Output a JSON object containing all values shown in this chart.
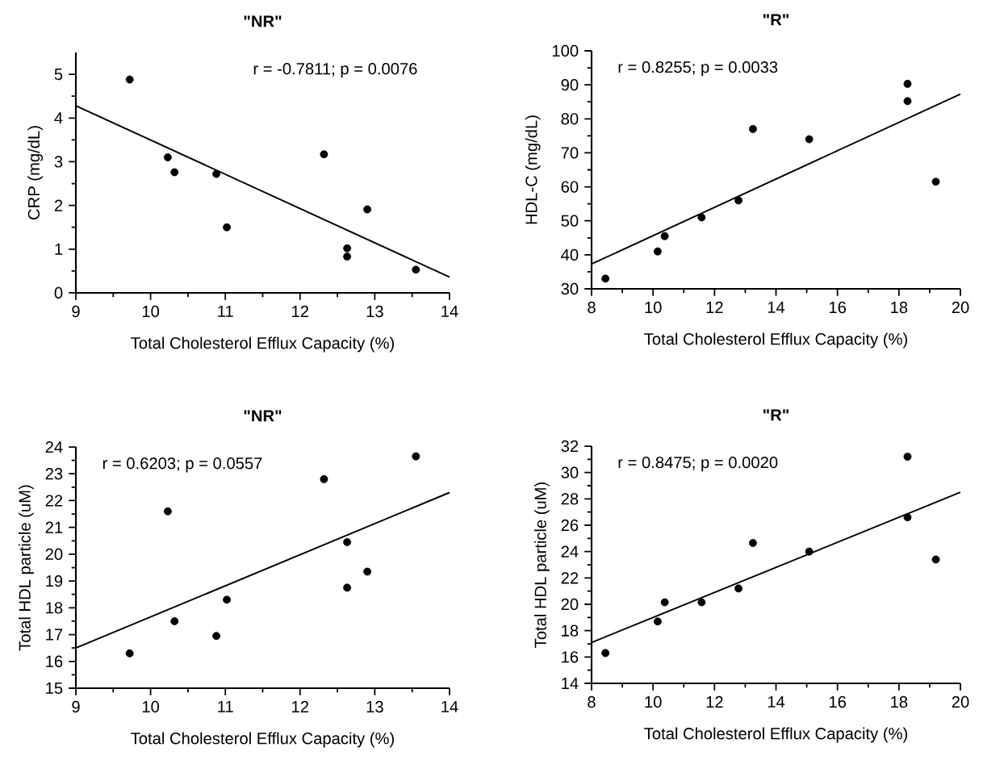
{
  "chart_data": [
    {
      "type": "scatter",
      "title": "\"NR\"",
      "xlabel": "Total Cholesterol Efflux Capacity (%)",
      "ylabel": "CRP (mg/dL)",
      "xlim": [
        9,
        14
      ],
      "ylim": [
        0,
        5.5
      ],
      "xticks": [
        9,
        10,
        11,
        12,
        13,
        14
      ],
      "yticks": [
        0,
        1,
        2,
        3,
        4,
        5
      ],
      "annotations": [
        "r = -0.7811; p = 0.0076"
      ],
      "series": [
        {
          "marker": "circle",
          "color": "#000000",
          "x": [
            9.72,
            10.23,
            10.32,
            10.88,
            11.02,
            12.32,
            12.63,
            12.63,
            12.9,
            13.55
          ],
          "values": [
            4.88,
            3.1,
            2.76,
            2.72,
            1.5,
            3.17,
            1.02,
            0.83,
            1.91,
            0.53
          ]
        },
        {
          "type": "line",
          "marker": "none",
          "color": "#000000",
          "x": [
            9,
            14
          ],
          "values": [
            4.28,
            0.36
          ]
        }
      ]
    },
    {
      "type": "scatter",
      "title": "\"R\"",
      "xlabel": "Total Cholesterol Efflux Capacity (%)",
      "ylabel": "HDL-C (mg/dL)",
      "xlim": [
        8,
        20
      ],
      "ylim": [
        30,
        100
      ],
      "xticks": [
        8,
        10,
        12,
        14,
        16,
        18,
        20
      ],
      "yticks": [
        30,
        40,
        50,
        60,
        70,
        80,
        90,
        100
      ],
      "annotations": [
        "r = 0.8255; p = 0.0033"
      ],
      "series": [
        {
          "marker": "circle",
          "color": "#000000",
          "x": [
            8.45,
            10.15,
            10.38,
            11.58,
            12.78,
            13.25,
            15.08,
            18.28,
            18.28,
            19.2
          ],
          "values": [
            33,
            41,
            45.5,
            51,
            56,
            77,
            74,
            90.3,
            85.2,
            61.5
          ]
        },
        {
          "type": "line",
          "marker": "none",
          "color": "#000000",
          "x": [
            8,
            20
          ],
          "values": [
            37.3,
            87.3
          ]
        }
      ]
    },
    {
      "type": "scatter",
      "title": "\"NR\"",
      "xlabel": "Total Cholesterol Efflux Capacity (%)",
      "ylabel": "Total HDL particle (uM)",
      "xlim": [
        9,
        14
      ],
      "ylim": [
        15,
        24
      ],
      "xticks": [
        9,
        10,
        11,
        12,
        13,
        14
      ],
      "yticks": [
        15,
        16,
        17,
        18,
        19,
        20,
        21,
        22,
        23,
        24
      ],
      "annotations": [
        "r = 0.6203; p = 0.0557"
      ],
      "series": [
        {
          "marker": "circle",
          "color": "#000000",
          "x": [
            9.72,
            10.23,
            10.32,
            10.88,
            11.02,
            12.32,
            12.63,
            12.63,
            12.9,
            13.55
          ],
          "values": [
            16.3,
            21.6,
            17.5,
            16.95,
            18.3,
            22.8,
            20.45,
            18.75,
            19.35,
            23.65
          ]
        },
        {
          "type": "line",
          "marker": "none",
          "color": "#000000",
          "x": [
            9,
            14
          ],
          "values": [
            16.5,
            22.3
          ]
        }
      ]
    },
    {
      "type": "scatter",
      "title": "\"R\"",
      "xlabel": "Total Cholesterol Efflux Capacity (%)",
      "ylabel": "Total HDL particle (uM)",
      "xlim": [
        8,
        20
      ],
      "ylim": [
        14,
        32
      ],
      "xticks": [
        8,
        10,
        12,
        14,
        16,
        18,
        20
      ],
      "yticks": [
        14,
        16,
        18,
        20,
        22,
        24,
        26,
        28,
        30,
        32
      ],
      "annotations": [
        "r = 0.8475; p = 0.0020"
      ],
      "series": [
        {
          "marker": "circle",
          "color": "#000000",
          "x": [
            8.45,
            10.15,
            10.38,
            11.58,
            12.78,
            13.25,
            15.08,
            18.28,
            18.28,
            19.2
          ],
          "values": [
            16.3,
            18.7,
            20.15,
            20.15,
            21.2,
            24.65,
            24.0,
            31.2,
            26.6,
            23.4
          ]
        },
        {
          "type": "line",
          "marker": "none",
          "color": "#000000",
          "x": [
            8,
            20
          ],
          "values": [
            17.1,
            28.5
          ]
        }
      ]
    }
  ]
}
